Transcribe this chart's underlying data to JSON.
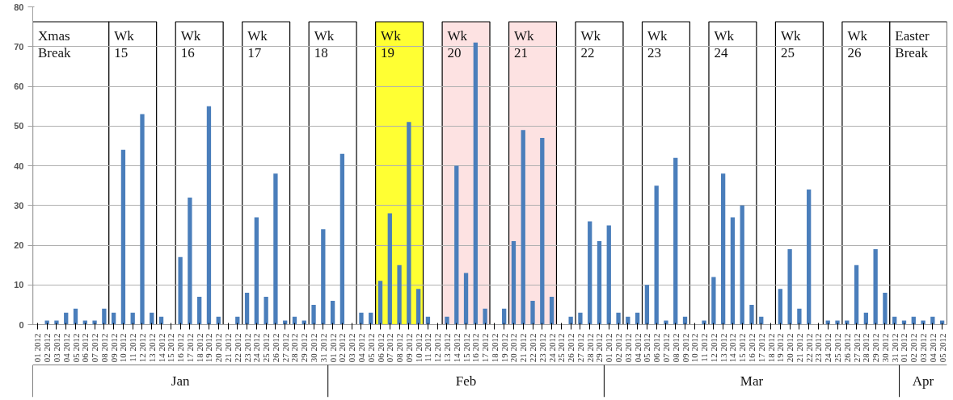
{
  "chart_data": {
    "type": "bar",
    "x": [
      "2012-01-01",
      "2012-01-02",
      "2012-01-03",
      "2012-01-04",
      "2012-01-05",
      "2012-01-06",
      "2012-01-07",
      "2012-01-08",
      "2012-01-09",
      "2012-01-10",
      "2012-01-11",
      "2012-01-12",
      "2012-01-13",
      "2012-01-14",
      "2012-01-15",
      "2012-01-16",
      "2012-01-17",
      "2012-01-18",
      "2012-01-19",
      "2012-01-20",
      "2012-01-21",
      "2012-01-22",
      "2012-01-23",
      "2012-01-24",
      "2012-01-25",
      "2012-01-26",
      "2012-01-27",
      "2012-01-28",
      "2012-01-29",
      "2012-01-30",
      "2012-01-31",
      "2012-02-01",
      "2012-02-02",
      "2012-02-03",
      "2012-02-04",
      "2012-02-05",
      "2012-02-06",
      "2012-02-07",
      "2012-02-08",
      "2012-02-09",
      "2012-02-10",
      "2012-02-11",
      "2012-02-12",
      "2012-02-13",
      "2012-02-14",
      "2012-02-15",
      "2012-02-16",
      "2012-02-17",
      "2012-02-18",
      "2012-02-19",
      "2012-02-20",
      "2012-02-21",
      "2012-02-22",
      "2012-02-23",
      "2012-02-24",
      "2012-02-25",
      "2012-02-26",
      "2012-02-27",
      "2012-02-28",
      "2012-02-29",
      "2012-03-01",
      "2012-03-02",
      "2012-03-03",
      "2012-03-04",
      "2012-03-05",
      "2012-03-06",
      "2012-03-07",
      "2012-03-08",
      "2012-03-09",
      "2012-03-10",
      "2012-03-11",
      "2012-03-12",
      "2012-03-13",
      "2012-03-14",
      "2012-03-15",
      "2012-03-16",
      "2012-03-17",
      "2012-03-18",
      "2012-03-19",
      "2012-03-20",
      "2012-03-21",
      "2012-03-22",
      "2012-03-23",
      "2012-03-24",
      "2012-03-25",
      "2012-03-26",
      "2012-03-27",
      "2012-03-28",
      "2012-03-29",
      "2012-03-30",
      "2012-03-31",
      "2012-04-01",
      "2012-04-02",
      "2012-04-03",
      "2012-04-04",
      "2012-04-05"
    ],
    "values": [
      0,
      1,
      1,
      3,
      4,
      1,
      1,
      4,
      3,
      44,
      3,
      53,
      3,
      2,
      0,
      17,
      32,
      7,
      55,
      2,
      0,
      2,
      8,
      27,
      7,
      38,
      1,
      2,
      1,
      5,
      24,
      6,
      43,
      0,
      3,
      3,
      11,
      28,
      15,
      51,
      9,
      2,
      0,
      2,
      40,
      13,
      71,
      4,
      0,
      4,
      21,
      49,
      6,
      47,
      7,
      0,
      2,
      3,
      26,
      21,
      25,
      3,
      2,
      3,
      10,
      35,
      1,
      42,
      2,
      0,
      1,
      12,
      38,
      27,
      30,
      5,
      2,
      0,
      9,
      19,
      4,
      34,
      0,
      1,
      1,
      1,
      15,
      3,
      19,
      8,
      2,
      1,
      2,
      1,
      2,
      1
    ],
    "color": "#4a7ebb",
    "xlim": [
      "2011-12-31T12:00",
      "2012-04-05T12:00"
    ],
    "xticks": [
      {
        "value": "2012-01-01",
        "label": "01 2012"
      },
      {
        "value": "2012-01-02",
        "label": "02 2012"
      },
      {
        "value": "2012-01-03",
        "label": "03 2012"
      },
      {
        "value": "2012-01-04",
        "label": "04 2012"
      },
      {
        "value": "2012-01-05",
        "label": "05 2012"
      },
      {
        "value": "2012-01-06",
        "label": "06 2012"
      },
      {
        "value": "2012-01-07",
        "label": "07 2012"
      },
      {
        "value": "2012-01-08",
        "label": "08 2012"
      },
      {
        "value": "2012-01-09",
        "label": "09 2012"
      },
      {
        "value": "2012-01-10",
        "label": "10 2012"
      },
      {
        "value": "2012-01-11",
        "label": "11 2012"
      },
      {
        "value": "2012-01-12",
        "label": "12 2012"
      },
      {
        "value": "2012-01-13",
        "label": "13 2012"
      },
      {
        "value": "2012-01-14",
        "label": "14 2012"
      },
      {
        "value": "2012-01-15",
        "label": "15 2012"
      },
      {
        "value": "2012-01-16",
        "label": "16 2012"
      },
      {
        "value": "2012-01-17",
        "label": "17 2012"
      },
      {
        "value": "2012-01-18",
        "label": "18 2012"
      },
      {
        "value": "2012-01-19",
        "label": "19 2012"
      },
      {
        "value": "2012-01-20",
        "label": "20 2012"
      },
      {
        "value": "2012-01-21",
        "label": "21 2012"
      },
      {
        "value": "2012-01-22",
        "label": "22 2012"
      },
      {
        "value": "2012-01-23",
        "label": "23 2012"
      },
      {
        "value": "2012-01-24",
        "label": "24 2012"
      },
      {
        "value": "2012-01-25",
        "label": "25 2012"
      },
      {
        "value": "2012-01-26",
        "label": "26 2012"
      },
      {
        "value": "2012-01-27",
        "label": "27 2012"
      },
      {
        "value": "2012-01-28",
        "label": "28 2012"
      },
      {
        "value": "2012-01-29",
        "label": "29 2012"
      },
      {
        "value": "2012-01-30",
        "label": "30 2012"
      },
      {
        "value": "2012-01-31",
        "label": "31 2012"
      },
      {
        "value": "2012-02-01",
        "label": "01 2012"
      },
      {
        "value": "2012-02-02",
        "label": "02 2012"
      },
      {
        "value": "2012-02-03",
        "label": "03 2012"
      },
      {
        "value": "2012-02-04",
        "label": "04 2012"
      },
      {
        "value": "2012-02-05",
        "label": "05 2012"
      },
      {
        "value": "2012-02-06",
        "label": "06 2012"
      },
      {
        "value": "2012-02-07",
        "label": "07 2012"
      },
      {
        "value": "2012-02-08",
        "label": "08 2012"
      },
      {
        "value": "2012-02-09",
        "label": "09 2012"
      },
      {
        "value": "2012-02-10",
        "label": "10 2012"
      },
      {
        "value": "2012-02-11",
        "label": "11 2012"
      },
      {
        "value": "2012-02-12",
        "label": "12 2012"
      },
      {
        "value": "2012-02-13",
        "label": "13 2012"
      },
      {
        "value": "2012-02-14",
        "label": "14 2012"
      },
      {
        "value": "2012-02-15",
        "label": "15 2012"
      },
      {
        "value": "2012-02-16",
        "label": "16 2012"
      },
      {
        "value": "2012-02-17",
        "label": "17 2012"
      },
      {
        "value": "2012-02-18",
        "label": "18 2012"
      },
      {
        "value": "2012-02-19",
        "label": "19 2012"
      },
      {
        "value": "2012-02-20",
        "label": "20 2012"
      },
      {
        "value": "2012-02-21",
        "label": "21 2012"
      },
      {
        "value": "2012-02-22",
        "label": "22 2012"
      },
      {
        "value": "2012-02-23",
        "label": "23 2012"
      },
      {
        "value": "2012-02-24",
        "label": "24 2012"
      },
      {
        "value": "2012-02-25",
        "label": "25 2012"
      },
      {
        "value": "2012-02-26",
        "label": "26 2012"
      },
      {
        "value": "2012-02-27",
        "label": "27 2012"
      },
      {
        "value": "2012-02-28",
        "label": "28 2012"
      },
      {
        "value": "2012-02-29",
        "label": "29 2012"
      },
      {
        "value": "2012-03-01",
        "label": "01 2012"
      },
      {
        "value": "2012-03-02",
        "label": "02 2012"
      },
      {
        "value": "2012-03-03",
        "label": "03 2012"
      },
      {
        "value": "2012-03-04",
        "label": "04 2012"
      },
      {
        "value": "2012-03-05",
        "label": "05 2012"
      },
      {
        "value": "2012-03-06",
        "label": "06 2012"
      },
      {
        "value": "2012-03-07",
        "label": "07 2012"
      },
      {
        "value": "2012-03-08",
        "label": "08 2012"
      },
      {
        "value": "2012-03-09",
        "label": "09 2012"
      },
      {
        "value": "2012-03-10",
        "label": "10 2012"
      },
      {
        "value": "2012-03-11",
        "label": "11 2012"
      },
      {
        "value": "2012-03-12",
        "label": "12 2012"
      },
      {
        "value": "2012-03-13",
        "label": "13 2012"
      },
      {
        "value": "2012-03-14",
        "label": "14 2012"
      },
      {
        "value": "2012-03-15",
        "label": "15 2012"
      },
      {
        "value": "2012-03-16",
        "label": "16 2012"
      },
      {
        "value": "2012-03-17",
        "label": "17 2012"
      },
      {
        "value": "2012-03-18",
        "label": "18 2012"
      },
      {
        "value": "2012-03-19",
        "label": "19 2012"
      },
      {
        "value": "2012-03-20",
        "label": "20 2012"
      },
      {
        "value": "2012-03-21",
        "label": "21 2012"
      },
      {
        "value": "2012-03-22",
        "label": "22 2012"
      },
      {
        "value": "2012-03-23",
        "label": "23 2012"
      },
      {
        "value": "2012-03-24",
        "label": "24 2012"
      },
      {
        "value": "2012-03-25",
        "label": "25 2012"
      },
      {
        "value": "2012-03-26",
        "label": "26 2012"
      },
      {
        "value": "2012-03-27",
        "label": "27 2012"
      },
      {
        "value": "2012-03-28",
        "label": "28 2012"
      },
      {
        "value": "2012-03-29",
        "label": "29 2012"
      },
      {
        "value": "2012-03-30",
        "label": "30 2012"
      },
      {
        "value": "2012-03-31",
        "label": "31 2012"
      },
      {
        "value": "2012-04-01",
        "label": "01 2012"
      },
      {
        "value": "2012-04-02",
        "label": "02 2012"
      },
      {
        "value": "2012-04-03",
        "label": "03 2012"
      },
      {
        "value": "2012-04-04",
        "label": "04 2012"
      },
      {
        "value": "2012-04-05",
        "label": "05 2012"
      }
    ],
    "ylim": [
      0,
      80
    ],
    "yticks": [
      0,
      10,
      20,
      30,
      40,
      50,
      60,
      70,
      80
    ],
    "grid": "y",
    "annotations": [
      "Jan",
      "Feb",
      "Mar",
      "Apr"
    ],
    "bands": [
      {
        "axis": "x",
        "from": "2011-12-31T12:00",
        "to": "2012-01-08T12:00",
        "label": "Xmas\nBreak",
        "color": "#ffffff"
      },
      {
        "axis": "x",
        "from": "2012-01-08T12:00",
        "to": "2012-01-13T12:00",
        "label": "Wk\n15",
        "color": "#ffffff"
      },
      {
        "axis": "x",
        "from": "2012-01-15T12:00",
        "to": "2012-01-20T12:00",
        "label": "Wk\n16",
        "color": "#ffffff"
      },
      {
        "axis": "x",
        "from": "2012-01-22T12:00",
        "to": "2012-01-27T12:00",
        "label": "Wk\n17",
        "color": "#ffffff"
      },
      {
        "axis": "x",
        "from": "2012-01-29T12:00",
        "to": "2012-02-03T12:00",
        "label": "Wk\n18",
        "color": "#ffffff"
      },
      {
        "axis": "x",
        "from": "2012-02-05T12:00",
        "to": "2012-02-10T12:00",
        "label": "Wk\n19",
        "color": "#ffff33"
      },
      {
        "axis": "x",
        "from": "2012-02-12T12:00",
        "to": "2012-02-17T12:00",
        "label": "Wk\n20",
        "color": "#fde2e2"
      },
      {
        "axis": "x",
        "from": "2012-02-19T12:00",
        "to": "2012-02-24T12:00",
        "label": "Wk\n21",
        "color": "#fde2e2"
      },
      {
        "axis": "x",
        "from": "2012-02-26T12:00",
        "to": "2012-03-02T12:00",
        "label": "Wk\n22",
        "color": "#ffffff"
      },
      {
        "axis": "x",
        "from": "2012-03-04T12:00",
        "to": "2012-03-09T12:00",
        "label": "Wk\n23",
        "color": "#ffffff"
      },
      {
        "axis": "x",
        "from": "2012-03-11T12:00",
        "to": "2012-03-16T12:00",
        "label": "Wk\n24",
        "color": "#ffffff"
      },
      {
        "axis": "x",
        "from": "2012-03-18T12:00",
        "to": "2012-03-23T12:00",
        "label": "Wk\n25",
        "color": "#ffffff"
      },
      {
        "axis": "x",
        "from": "2012-03-25T12:00",
        "to": "2012-03-30T12:00",
        "label": "Wk\n26",
        "color": "#ffffff"
      },
      {
        "axis": "x",
        "from": "2012-03-30T12:00",
        "to": "2012-04-05T12:00",
        "label": "Easter\nBreak",
        "color": "#ffffff"
      }
    ]
  }
}
